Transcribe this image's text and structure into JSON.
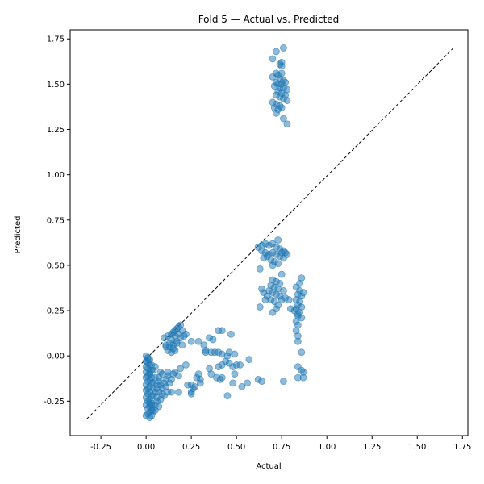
{
  "chart_data": {
    "type": "scatter",
    "title": "Fold 5 — Actual vs. Predicted",
    "xlabel": "Actual",
    "ylabel": "Predicted",
    "xlim": [
      -0.42,
      1.78
    ],
    "ylim": [
      -0.44,
      1.8
    ],
    "x_ticks": [
      "-0.25",
      "0.00",
      "0.25",
      "0.50",
      "0.75",
      "1.00",
      "1.25",
      "1.50",
      "1.75"
    ],
    "y_ticks": [
      "-0.25",
      "0.00",
      "0.25",
      "0.50",
      "0.75",
      "1.00",
      "1.25",
      "1.50",
      "1.75"
    ],
    "grid": false,
    "marker_color": "#1f77b4",
    "marker_alpha": 0.5,
    "reference_line": {
      "x": [
        -0.33,
        1.7
      ],
      "y": [
        -0.35,
        1.7
      ],
      "style": "dashed",
      "color": "#000000"
    },
    "points": [
      [
        0.72,
        1.68
      ],
      [
        0.76,
        1.7
      ],
      [
        0.7,
        1.64
      ],
      [
        0.75,
        1.62
      ],
      [
        0.74,
        1.61
      ],
      [
        0.75,
        1.6
      ],
      [
        0.7,
        1.54
      ],
      [
        0.72,
        1.56
      ],
      [
        0.73,
        1.55
      ],
      [
        0.75,
        1.56
      ],
      [
        0.74,
        1.53
      ],
      [
        0.76,
        1.52
      ],
      [
        0.72,
        1.51
      ],
      [
        0.73,
        1.5
      ],
      [
        0.75,
        1.5
      ],
      [
        0.77,
        1.51
      ],
      [
        0.71,
        1.49
      ],
      [
        0.74,
        1.48
      ],
      [
        0.76,
        1.48
      ],
      [
        0.78,
        1.47
      ],
      [
        0.73,
        1.46
      ],
      [
        0.75,
        1.45
      ],
      [
        0.77,
        1.44
      ],
      [
        0.72,
        1.44
      ],
      [
        0.74,
        1.43
      ],
      [
        0.76,
        1.42
      ],
      [
        0.78,
        1.41
      ],
      [
        0.7,
        1.4
      ],
      [
        0.72,
        1.39
      ],
      [
        0.74,
        1.38
      ],
      [
        0.71,
        1.37
      ],
      [
        0.73,
        1.36
      ],
      [
        0.75,
        1.37
      ],
      [
        0.72,
        1.34
      ],
      [
        0.76,
        1.31
      ],
      [
        0.78,
        1.28
      ],
      [
        0.62,
        0.6
      ],
      [
        0.64,
        0.61
      ],
      [
        0.66,
        0.62
      ],
      [
        0.68,
        0.61
      ],
      [
        0.7,
        0.62
      ],
      [
        0.72,
        0.6
      ],
      [
        0.73,
        0.64
      ],
      [
        0.74,
        0.59
      ],
      [
        0.76,
        0.58
      ],
      [
        0.77,
        0.57
      ],
      [
        0.64,
        0.58
      ],
      [
        0.66,
        0.57
      ],
      [
        0.68,
        0.56
      ],
      [
        0.7,
        0.57
      ],
      [
        0.72,
        0.56
      ],
      [
        0.74,
        0.55
      ],
      [
        0.76,
        0.54
      ],
      [
        0.65,
        0.54
      ],
      [
        0.67,
        0.55
      ],
      [
        0.69,
        0.53
      ],
      [
        0.71,
        0.52
      ],
      [
        0.73,
        0.51
      ],
      [
        0.7,
        0.5
      ],
      [
        0.63,
        0.48
      ],
      [
        0.78,
        0.56
      ],
      [
        0.75,
        0.57
      ],
      [
        0.7,
        0.42
      ],
      [
        0.72,
        0.41
      ],
      [
        0.75,
        0.45
      ],
      [
        0.69,
        0.39
      ],
      [
        0.71,
        0.38
      ],
      [
        0.73,
        0.37
      ],
      [
        0.74,
        0.4
      ],
      [
        0.76,
        0.36
      ],
      [
        0.68,
        0.36
      ],
      [
        0.7,
        0.35
      ],
      [
        0.72,
        0.34
      ],
      [
        0.74,
        0.33
      ],
      [
        0.64,
        0.37
      ],
      [
        0.65,
        0.35
      ],
      [
        0.66,
        0.31
      ],
      [
        0.67,
        0.33
      ],
      [
        0.69,
        0.31
      ],
      [
        0.71,
        0.3
      ],
      [
        0.73,
        0.28
      ],
      [
        0.72,
        0.26
      ],
      [
        0.7,
        0.24
      ],
      [
        0.63,
        0.27
      ],
      [
        0.75,
        0.31
      ],
      [
        0.77,
        0.32
      ],
      [
        0.79,
        0.31
      ],
      [
        0.8,
        0.26
      ],
      [
        0.82,
        0.25
      ],
      [
        0.84,
        0.23
      ],
      [
        0.86,
        0.43
      ],
      [
        0.85,
        0.4
      ],
      [
        0.83,
        0.38
      ],
      [
        0.85,
        0.36
      ],
      [
        0.87,
        0.35
      ],
      [
        0.84,
        0.34
      ],
      [
        0.86,
        0.33
      ],
      [
        0.83,
        0.31
      ],
      [
        0.85,
        0.3
      ],
      [
        0.84,
        0.28
      ],
      [
        0.86,
        0.27
      ],
      [
        0.83,
        0.26
      ],
      [
        0.85,
        0.24
      ],
      [
        0.84,
        0.22
      ],
      [
        0.86,
        0.21
      ],
      [
        0.83,
        0.19
      ],
      [
        0.84,
        0.17
      ],
      [
        0.83,
        0.14
      ],
      [
        0.84,
        0.11
      ],
      [
        0.84,
        0.08
      ],
      [
        0.86,
        0.02
      ],
      [
        0.84,
        -0.06
      ],
      [
        0.86,
        -0.08
      ],
      [
        0.87,
        -0.09
      ],
      [
        0.84,
        -0.12
      ],
      [
        0.87,
        -0.12
      ],
      [
        0.76,
        -0.14
      ],
      [
        0.57,
        -0.02
      ],
      [
        0.62,
        -0.13
      ],
      [
        0.64,
        -0.14
      ],
      [
        0.56,
        -0.15
      ],
      [
        0.53,
        -0.17
      ],
      [
        0.45,
        -0.22
      ],
      [
        0.5,
        -0.05
      ],
      [
        0.52,
        -0.05
      ],
      [
        0.48,
        -0.06
      ],
      [
        0.46,
        -0.04
      ],
      [
        0.44,
        -0.03
      ],
      [
        0.42,
        -0.05
      ],
      [
        0.4,
        -0.06
      ],
      [
        0.49,
        -0.1
      ],
      [
        0.48,
        -0.15
      ],
      [
        0.42,
        -0.12
      ],
      [
        0.39,
        -0.12
      ],
      [
        0.41,
        -0.13
      ],
      [
        0.36,
        -0.1
      ],
      [
        0.35,
        -0.07
      ],
      [
        0.33,
        0.03
      ],
      [
        0.33,
        0.02
      ],
      [
        0.36,
        0.02
      ],
      [
        0.4,
        0.02
      ],
      [
        0.42,
        0.01
      ],
      [
        0.45,
        0.0
      ],
      [
        0.46,
        0.02
      ],
      [
        0.49,
        0.01
      ],
      [
        0.38,
        0.02
      ],
      [
        0.4,
        0.14
      ],
      [
        0.42,
        0.14
      ],
      [
        0.47,
        0.12
      ],
      [
        0.35,
        0.1
      ],
      [
        0.37,
        0.09
      ],
      [
        0.32,
        0.06
      ],
      [
        0.29,
        0.08
      ],
      [
        0.29,
        -0.1
      ],
      [
        0.28,
        -0.12
      ],
      [
        0.3,
        -0.13
      ],
      [
        0.3,
        -0.15
      ],
      [
        0.27,
        -0.17
      ],
      [
        0.25,
        -0.16
      ],
      [
        0.23,
        -0.16
      ],
      [
        0.26,
        -0.18
      ],
      [
        0.25,
        -0.2
      ],
      [
        0.25,
        -0.21
      ],
      [
        0.22,
        -0.05
      ],
      [
        0.25,
        0.08
      ],
      [
        0.1,
        0.1
      ],
      [
        0.12,
        0.11
      ],
      [
        0.14,
        0.12
      ],
      [
        0.15,
        0.13
      ],
      [
        0.16,
        0.14
      ],
      [
        0.17,
        0.15
      ],
      [
        0.18,
        0.16
      ],
      [
        0.19,
        0.17
      ],
      [
        0.2,
        0.14
      ],
      [
        0.18,
        0.12
      ],
      [
        0.16,
        0.11
      ],
      [
        0.14,
        0.09
      ],
      [
        0.13,
        0.07
      ],
      [
        0.15,
        0.06
      ],
      [
        0.17,
        0.08
      ],
      [
        0.19,
        0.1
      ],
      [
        0.21,
        0.11
      ],
      [
        0.11,
        0.06
      ],
      [
        0.13,
        0.05
      ],
      [
        0.15,
        0.04
      ],
      [
        0.16,
        0.03
      ],
      [
        0.14,
        0.02
      ],
      [
        0.17,
        0.07
      ],
      [
        0.2,
        0.06
      ],
      [
        0.22,
        0.12
      ],
      [
        0.12,
        0.03
      ],
      [
        0.11,
        0.05
      ],
      [
        0.0,
        0.0
      ],
      [
        0.01,
        -0.01
      ],
      [
        0.02,
        -0.02
      ],
      [
        0.0,
        -0.03
      ],
      [
        0.01,
        -0.04
      ],
      [
        0.02,
        -0.05
      ],
      [
        0.0,
        -0.06
      ],
      [
        0.01,
        -0.07
      ],
      [
        0.03,
        -0.08
      ],
      [
        0.0,
        -0.09
      ],
      [
        0.02,
        -0.1
      ],
      [
        0.01,
        -0.11
      ],
      [
        0.0,
        -0.12
      ],
      [
        0.02,
        -0.13
      ],
      [
        0.01,
        -0.14
      ],
      [
        0.03,
        -0.15
      ],
      [
        0.0,
        -0.16
      ],
      [
        0.02,
        -0.17
      ],
      [
        0.01,
        -0.18
      ],
      [
        0.0,
        -0.19
      ],
      [
        0.02,
        -0.2
      ],
      [
        0.01,
        -0.21
      ],
      [
        0.03,
        -0.22
      ],
      [
        0.0,
        -0.23
      ],
      [
        0.02,
        -0.24
      ],
      [
        0.01,
        -0.25
      ],
      [
        0.03,
        -0.26
      ],
      [
        0.0,
        -0.27
      ],
      [
        0.02,
        -0.28
      ],
      [
        0.01,
        -0.29
      ],
      [
        0.03,
        -0.3
      ],
      [
        0.02,
        -0.31
      ],
      [
        0.01,
        -0.32
      ],
      [
        0.03,
        -0.33
      ],
      [
        0.02,
        -0.34
      ],
      [
        0.04,
        -0.29
      ],
      [
        0.05,
        -0.27
      ],
      [
        0.06,
        -0.25
      ],
      [
        0.04,
        -0.22
      ],
      [
        0.05,
        -0.2
      ],
      [
        0.06,
        -0.18
      ],
      [
        0.04,
        -0.15
      ],
      [
        0.05,
        -0.12
      ],
      [
        0.07,
        -0.14
      ],
      [
        0.08,
        -0.16
      ],
      [
        0.09,
        -0.18
      ],
      [
        0.07,
        -0.2
      ],
      [
        0.06,
        -0.23
      ],
      [
        0.08,
        -0.24
      ],
      [
        0.1,
        -0.22
      ],
      [
        0.12,
        -0.2
      ],
      [
        0.1,
        -0.15
      ],
      [
        0.11,
        -0.13
      ],
      [
        0.12,
        -0.11
      ],
      [
        0.09,
        -0.1
      ],
      [
        0.07,
        -0.12
      ],
      [
        0.13,
        -0.15
      ],
      [
        0.14,
        -0.13
      ],
      [
        0.11,
        -0.17
      ],
      [
        0.09,
        -0.21
      ],
      [
        0.14,
        -0.2
      ],
      [
        0.18,
        -0.2
      ],
      [
        0.18,
        -0.11
      ],
      [
        0.19,
        -0.07
      ],
      [
        0.16,
        -0.09
      ],
      [
        0.12,
        -0.09
      ],
      [
        0.15,
        -0.1
      ],
      [
        0.08,
        -0.09
      ],
      [
        0.04,
        -0.08
      ],
      [
        0.03,
        -0.05
      ],
      [
        0.05,
        -0.06
      ],
      [
        0.01,
        -0.02
      ],
      [
        0.02,
        -0.09
      ],
      [
        0.04,
        -0.31
      ],
      [
        0.02,
        -0.26
      ],
      [
        0.04,
        -0.18
      ],
      [
        0.03,
        -0.12
      ],
      [
        0.06,
        -0.16
      ],
      [
        0.07,
        -0.28
      ],
      [
        0.05,
        -0.3
      ],
      [
        0.03,
        -0.27
      ],
      [
        0.0,
        -0.33
      ]
    ]
  }
}
